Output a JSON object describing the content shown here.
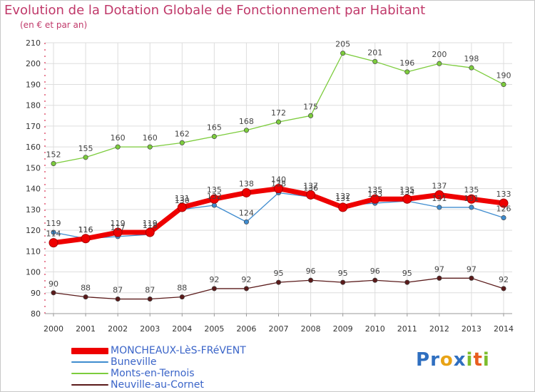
{
  "title": "Evolution de la Dotation Globale de Fonctionnement par Habitant",
  "subtitle": "(en € et par an)",
  "logo": {
    "letters": [
      "P",
      "r",
      "o",
      "x",
      "i",
      "t",
      "i"
    ],
    "colors": [
      "#2f6fc0",
      "#2f6fc0",
      "#e8a316",
      "#2f6fc0",
      "#7dbd2d",
      "#e85d1f",
      "#7dbd2d"
    ]
  },
  "chart_data": {
    "type": "line",
    "x": [
      "2000",
      "2001",
      "2002",
      "2003",
      "2004",
      "2005",
      "2006",
      "2007",
      "2008",
      "2009",
      "2010",
      "2011",
      "2012",
      "2013",
      "2014"
    ],
    "ylim": [
      80,
      210
    ],
    "yticks": [
      "80",
      "90",
      "100",
      "110",
      "120",
      "130",
      "140",
      "150",
      "160",
      "170",
      "180",
      "190",
      "200",
      "210"
    ],
    "grid": true,
    "legend_position": "bottom-left",
    "series": [
      {
        "name": "Neuville-au-Cornet",
        "color": "#5a1a1a",
        "values": [
          90,
          88,
          87,
          87,
          88,
          92,
          92,
          95,
          96,
          95,
          96,
          95,
          97,
          97,
          92
        ],
        "labels": [
          "90",
          "88",
          "87",
          "87",
          "88",
          "92",
          "92",
          "95",
          "96",
          "95",
          "96",
          "95",
          "97",
          "97",
          "92"
        ]
      },
      {
        "name": "Monts-en-Ternois",
        "color": "#7ccc3c",
        "values": [
          152,
          155,
          160,
          160,
          162,
          165,
          168,
          172,
          175,
          205,
          201,
          196,
          200,
          198,
          190
        ],
        "labels": [
          "152",
          "155",
          "160",
          "160",
          "162",
          "165",
          "168",
          "172",
          "175",
          "205",
          "201",
          "196",
          "200",
          "198",
          "190"
        ]
      },
      {
        "name": "Buneville",
        "color": "#3f8ccf",
        "values": [
          119,
          116,
          117,
          118,
          130,
          132,
          124,
          138,
          136,
          132,
          133,
          134,
          131,
          131,
          126
        ],
        "labels": [
          "119",
          "116",
          "117",
          "118",
          "130",
          "132",
          "124",
          "138",
          "136",
          "132",
          "133",
          "134",
          "131",
          "131",
          "126"
        ]
      },
      {
        "name": "MONCHEAUX-LèS-FRéVENT",
        "color": "#ee0000",
        "values": [
          114,
          116,
          119,
          119,
          131,
          135,
          138,
          140,
          137,
          131,
          135,
          135,
          137,
          135,
          133
        ],
        "labels": [
          "114",
          "116",
          "119",
          "119",
          "131",
          "135",
          "138",
          "140",
          "137",
          "131",
          "135",
          "135",
          "137",
          "135",
          "133"
        ]
      }
    ],
    "legend": [
      "MONCHEAUX-LèS-FRéVENT",
      "Buneville",
      "Monts-en-Ternois",
      "Neuville-au-Cornet"
    ]
  }
}
